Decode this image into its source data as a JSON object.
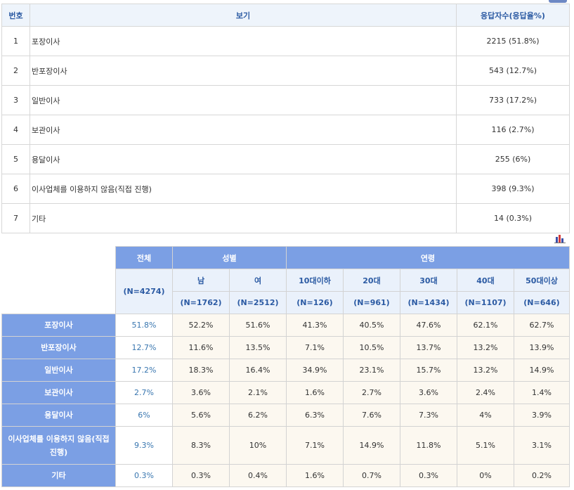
{
  "options_table": {
    "headers": {
      "no": "번호",
      "option": "보기",
      "result": "응답자수(응답율%)"
    },
    "rows": [
      {
        "no": "1",
        "option": "포장이사",
        "result": "2215 (51.8%)"
      },
      {
        "no": "2",
        "option": "반포장이사",
        "result": "543 (12.7%)"
      },
      {
        "no": "3",
        "option": "일반이사",
        "result": "733 (17.2%)"
      },
      {
        "no": "4",
        "option": "보관이사",
        "result": "116 (2.7%)"
      },
      {
        "no": "5",
        "option": "용달이사",
        "result": "255 (6%)"
      },
      {
        "no": "6",
        "option": "이사업체를 이용하지 않음(직접 진행)",
        "result": "398 (9.3%)"
      },
      {
        "no": "7",
        "option": "기타",
        "result": "14 (0.3%)"
      }
    ]
  },
  "icons": {
    "corner": "collapse-tab-icon",
    "chart": "bar-chart-icon",
    "chart_colors": [
      "#3a4fa8",
      "#d43a3a",
      "#3a4fa8"
    ]
  },
  "cross_table": {
    "total_label": "전체",
    "total_n": "(N=4274)",
    "gender_label": "성별",
    "age_label": "연령",
    "gender": [
      {
        "label": "남",
        "n": "(N=1762)"
      },
      {
        "label": "여",
        "n": "(N=2512)"
      }
    ],
    "ages": [
      {
        "label": "10대이하",
        "n": "(N=126)"
      },
      {
        "label": "20대",
        "n": "(N=961)"
      },
      {
        "label": "30대",
        "n": "(N=1434)"
      },
      {
        "label": "40대",
        "n": "(N=1107)"
      },
      {
        "label": "50대이상",
        "n": "(N=646)"
      }
    ],
    "rows": [
      {
        "label": "포장이사",
        "total": "51.8%",
        "cells": [
          "52.2%",
          "51.6%",
          "41.3%",
          "40.5%",
          "47.6%",
          "62.1%",
          "62.7%"
        ]
      },
      {
        "label": "반포장이사",
        "total": "12.7%",
        "cells": [
          "11.6%",
          "13.5%",
          "7.1%",
          "10.5%",
          "13.7%",
          "13.2%",
          "13.9%"
        ]
      },
      {
        "label": "일반이사",
        "total": "17.2%",
        "cells": [
          "18.3%",
          "16.4%",
          "34.9%",
          "23.1%",
          "15.7%",
          "13.2%",
          "14.9%"
        ]
      },
      {
        "label": "보관이사",
        "total": "2.7%",
        "cells": [
          "3.6%",
          "2.1%",
          "1.6%",
          "2.7%",
          "3.6%",
          "2.4%",
          "1.4%"
        ]
      },
      {
        "label": "용달이사",
        "total": "6%",
        "cells": [
          "5.6%",
          "6.2%",
          "6.3%",
          "7.6%",
          "7.3%",
          "4%",
          "3.9%"
        ]
      },
      {
        "label": "이사업체를 이용하지 않음(직접 진행)",
        "total": "9.3%",
        "cells": [
          "8.3%",
          "10%",
          "7.1%",
          "14.9%",
          "11.8%",
          "5.1%",
          "3.1%"
        ]
      },
      {
        "label": "기타",
        "total": "0.3%",
        "cells": [
          "0.3%",
          "0.4%",
          "1.6%",
          "0.7%",
          "0.3%",
          "0%",
          "0.2%"
        ]
      }
    ]
  }
}
